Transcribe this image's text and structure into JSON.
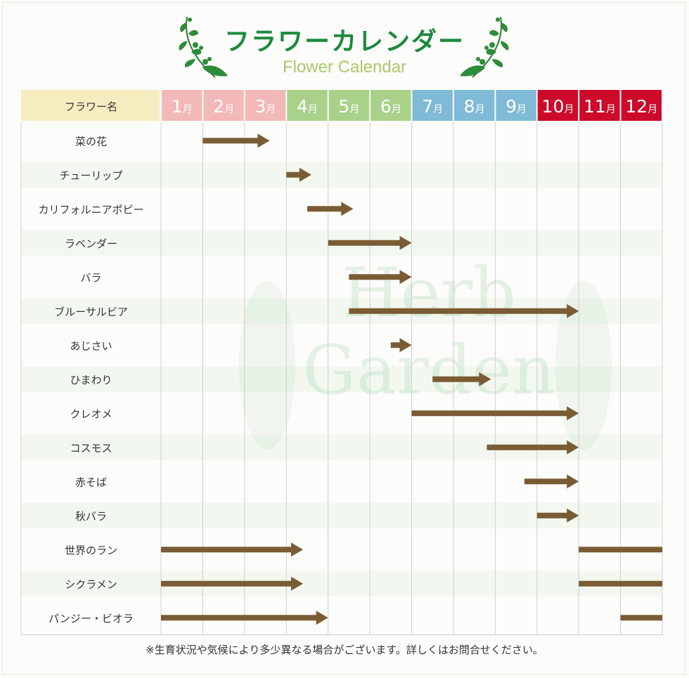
{
  "title": "フラワーカレンダー",
  "subtitle": "Flower Calendar",
  "footnote": "※生育状況や気候により多少異なる場合がございます。詳しくはお問合せください。",
  "watermark": [
    "Herb",
    "Garden"
  ],
  "colors": {
    "title": "#1b8a3c",
    "subtitle": "#a9c96a",
    "header_name_bg": "#f5edbf",
    "winter": "#f3b8b8",
    "spring": "#a9d18a",
    "summer": "#7fbad6",
    "autumn": "#cc0a2a",
    "arrow": "#7a5c34",
    "row_alt": "#eef7ea",
    "grid": "#cfcfcf"
  },
  "chart_data": {
    "type": "table",
    "header_label": "フラワー名",
    "months": [
      {
        "num": "1",
        "suffix": "月",
        "season": "winter"
      },
      {
        "num": "2",
        "suffix": "月",
        "season": "winter"
      },
      {
        "num": "3",
        "suffix": "月",
        "season": "winter"
      },
      {
        "num": "4",
        "suffix": "月",
        "season": "spring"
      },
      {
        "num": "5",
        "suffix": "月",
        "season": "spring"
      },
      {
        "num": "6",
        "suffix": "月",
        "season": "spring"
      },
      {
        "num": "7",
        "suffix": "月",
        "season": "summer"
      },
      {
        "num": "8",
        "suffix": "月",
        "season": "summer"
      },
      {
        "num": "9",
        "suffix": "月",
        "season": "summer"
      },
      {
        "num": "10",
        "suffix": "月",
        "season": "autumn"
      },
      {
        "num": "11",
        "suffix": "月",
        "season": "autumn"
      },
      {
        "num": "12",
        "suffix": "月",
        "season": "autumn"
      }
    ],
    "flowers": [
      {
        "name": "菜の花",
        "periods": [
          {
            "start": 2.0,
            "end": 3.6,
            "arrow": true
          }
        ]
      },
      {
        "name": "チューリップ",
        "periods": [
          {
            "start": 4.0,
            "end": 4.6,
            "arrow": true
          }
        ]
      },
      {
        "name": "カリフォルニアポピー",
        "periods": [
          {
            "start": 4.5,
            "end": 5.6,
            "arrow": true
          }
        ]
      },
      {
        "name": "ラベンダー",
        "periods": [
          {
            "start": 5.0,
            "end": 7.0,
            "arrow": true
          }
        ]
      },
      {
        "name": "バラ",
        "periods": [
          {
            "start": 5.5,
            "end": 7.0,
            "arrow": true
          }
        ]
      },
      {
        "name": "ブルーサルビア",
        "periods": [
          {
            "start": 5.5,
            "end": 11.0,
            "arrow": true
          }
        ]
      },
      {
        "name": "あじさい",
        "periods": [
          {
            "start": 6.5,
            "end": 7.0,
            "arrow": true
          }
        ]
      },
      {
        "name": "ひまわり",
        "periods": [
          {
            "start": 7.5,
            "end": 8.9,
            "arrow": true
          }
        ]
      },
      {
        "name": "クレオメ",
        "periods": [
          {
            "start": 7.0,
            "end": 11.0,
            "arrow": true
          }
        ]
      },
      {
        "name": "コスモス",
        "periods": [
          {
            "start": 8.8,
            "end": 11.0,
            "arrow": true
          }
        ]
      },
      {
        "name": "赤そば",
        "periods": [
          {
            "start": 9.7,
            "end": 11.0,
            "arrow": true
          }
        ]
      },
      {
        "name": "秋バラ",
        "periods": [
          {
            "start": 10.0,
            "end": 11.0,
            "arrow": true
          }
        ]
      },
      {
        "name": "世界のラン",
        "periods": [
          {
            "start": 1.0,
            "end": 4.4,
            "arrow": true
          },
          {
            "start": 11.0,
            "end": 13.0,
            "arrow": false
          }
        ]
      },
      {
        "name": "シクラメン",
        "periods": [
          {
            "start": 1.0,
            "end": 4.4,
            "arrow": true
          },
          {
            "start": 11.0,
            "end": 13.0,
            "arrow": false
          }
        ]
      },
      {
        "name": "パンジー・ビオラ",
        "periods": [
          {
            "start": 1.0,
            "end": 5.0,
            "arrow": true
          },
          {
            "start": 12.0,
            "end": 13.0,
            "arrow": false
          }
        ]
      }
    ]
  }
}
